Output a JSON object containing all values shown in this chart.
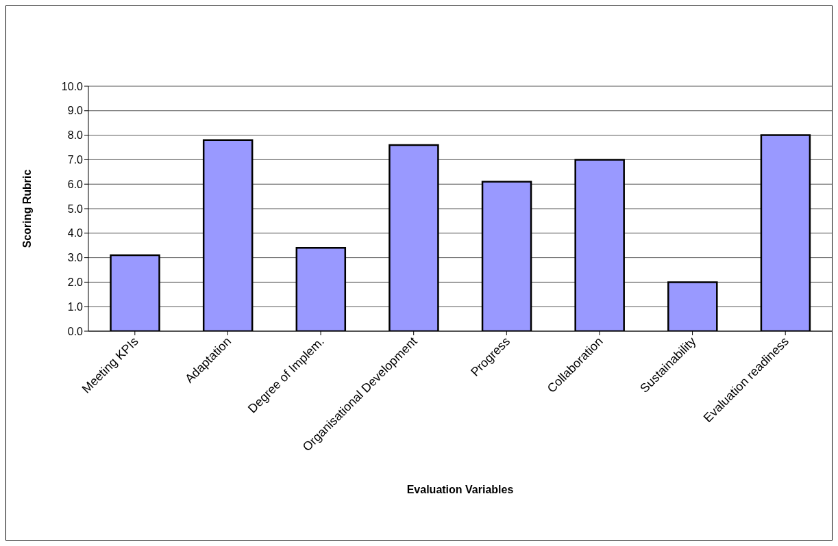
{
  "chart_data": {
    "type": "bar",
    "xlabel": "Evaluation Variables",
    "ylabel": "Scoring Rubric",
    "categories": [
      "Meeting KPIs",
      "Adaptation",
      "Degree of Implem.",
      "Organisational Development",
      "Progress",
      "Collaboration",
      "Sustainability",
      "Evaluation readiness"
    ],
    "values": [
      3.1,
      7.8,
      3.4,
      7.6,
      6.1,
      7.0,
      2.0,
      8.0
    ],
    "color": "#9999ff",
    "ylim": [
      0,
      10
    ],
    "yticks": [
      {
        "value": 0,
        "label": "0.0"
      },
      {
        "value": 1,
        "label": "1.0"
      },
      {
        "value": 2,
        "label": "2.0"
      },
      {
        "value": 3,
        "label": "3.0"
      },
      {
        "value": 4,
        "label": "4.0"
      },
      {
        "value": 5,
        "label": "5.0"
      },
      {
        "value": 6,
        "label": "6.0"
      },
      {
        "value": 7,
        "label": "7.0"
      },
      {
        "value": 8,
        "label": "8.0"
      },
      {
        "value": 9,
        "label": "9.0"
      },
      {
        "value": 10,
        "label": "10.0"
      }
    ],
    "grid": "y",
    "legend": false
  }
}
